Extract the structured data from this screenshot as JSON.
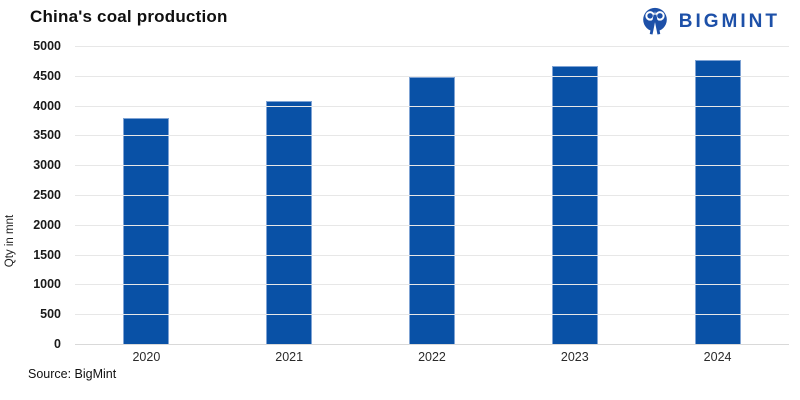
{
  "header": {
    "title": "China's coal production",
    "brand": "BIGMINT"
  },
  "footer": {
    "source": "Source: BigMint"
  },
  "colors": {
    "bar": "#0951a6",
    "brand_blue": "#1d50a8",
    "gridline": "#e7e7e7"
  },
  "icons": {
    "logo": "bigmint-miner-icon"
  },
  "chart_data": {
    "type": "bar",
    "title": "China's coal production",
    "categories": [
      "2020",
      "2021",
      "2022",
      "2023",
      "2024"
    ],
    "values": [
      3800,
      4080,
      4480,
      4670,
      4760
    ],
    "xlabel": "",
    "ylabel": "Qty in mnt",
    "ylim": [
      0,
      5000
    ],
    "yticks": [
      0,
      500,
      1000,
      1500,
      2000,
      2500,
      3000,
      3500,
      4000,
      4500,
      5000
    ],
    "grid": true,
    "legend": "none",
    "bar_color": "#0951a6"
  }
}
